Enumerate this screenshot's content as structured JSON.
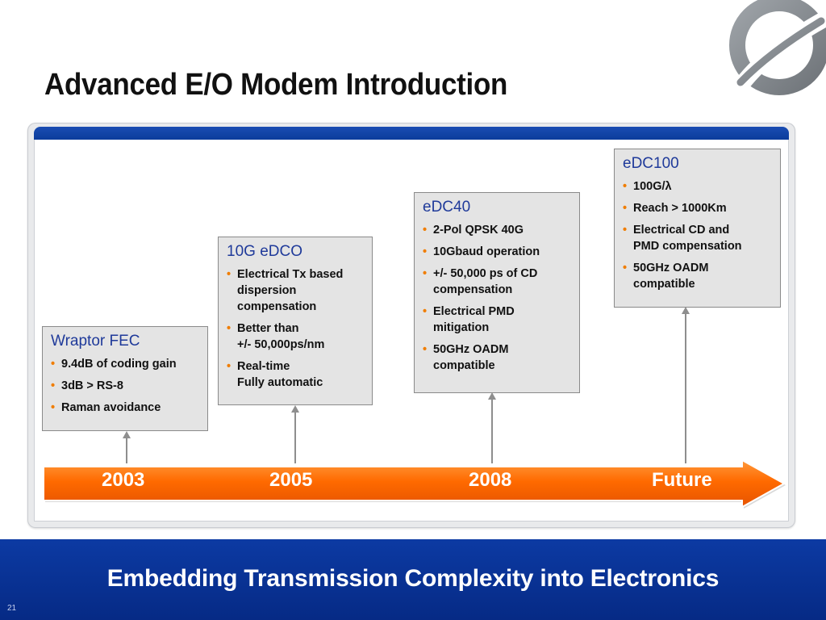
{
  "slide": {
    "title": "Advanced E/O Modem Introduction",
    "footer": "Embedding Transmission Complexity into Electronics",
    "slide_number": "21"
  },
  "colors": {
    "title_blue": "#1f3a9a",
    "bullet_orange": "#f07d00",
    "band_blue": "#0a3a98",
    "timeline_orange": "#ff6a00"
  },
  "cards": {
    "wraptor": {
      "title": "Wraptor FEC",
      "bullets": [
        "9.4dB of coding gain",
        "3dB > RS-8",
        "Raman avoidance"
      ]
    },
    "edco": {
      "title": "10G eDCO",
      "bullets": [
        "Electrical Tx based\ndispersion\ncompensation",
        "Better than\n+/- 50,000ps/nm",
        "Real-time\nFully automatic"
      ]
    },
    "edc40": {
      "title": "eDC40",
      "bullets": [
        "2-Pol QPSK 40G",
        "10Gbaud operation",
        "+/- 50,000 ps of CD\ncompensation",
        "Electrical PMD\nmitigation",
        "50GHz OADM\ncompatible"
      ]
    },
    "edc100": {
      "title": "eDC100",
      "bullets": [
        "100G/λ",
        "Reach > 1000Km",
        "Electrical CD and\nPMD  compensation",
        "50GHz OADM\ncompatible"
      ]
    }
  },
  "timeline": {
    "years": [
      "2003",
      "2005",
      "2008",
      "Future"
    ]
  }
}
